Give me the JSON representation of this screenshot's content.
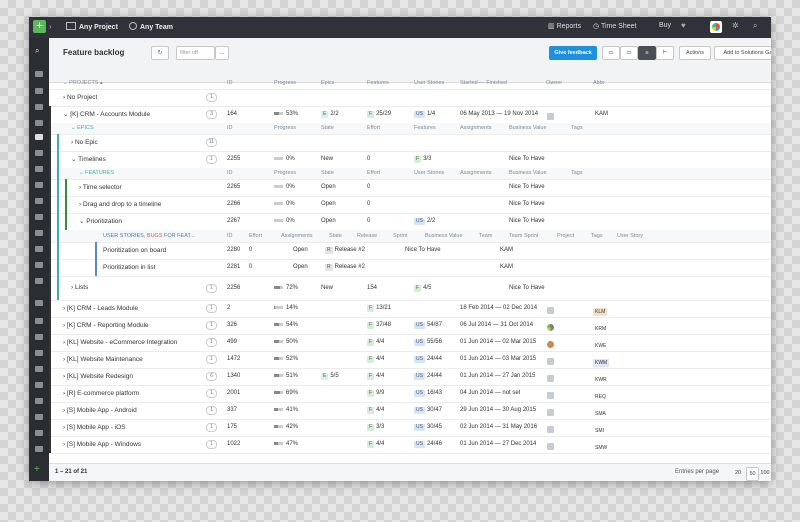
{
  "topbar": {
    "project": "Any Project",
    "team": "Any Team",
    "reports": "Reports",
    "timesheet": "Time Sheet",
    "buy": "Buy"
  },
  "toolbar": {
    "title": "Feature backlog",
    "filter_placeholder": "filter off",
    "more": "...",
    "feedback": "Give feedback",
    "actions": "Actions",
    "gallery": "Add to Solutions Gallery"
  },
  "header": {
    "projects": "PROJECTS",
    "id": "ID",
    "progress": "Progress",
    "epics": "Epics",
    "features": "Features",
    "stories": "User Stories",
    "started": "Started — Finished",
    "owner": "Owner",
    "abbr": "Abbr."
  },
  "epic_header": {
    "label": "EPICS",
    "id": "ID",
    "progress": "Progress",
    "state": "State",
    "effort": "Effort",
    "features": "Features",
    "assignments": "Assignments",
    "business": "Business Value",
    "tags": "Tags"
  },
  "feature_header": {
    "label": "FEATURES",
    "id": "ID",
    "progress": "Progress",
    "state": "State",
    "effort": "Effort",
    "stories": "User Stories",
    "assignments": "Assignments",
    "business": "Business Value",
    "tags": "Tags"
  },
  "story_header": {
    "label_a": "USER STORIES,",
    "label_b": "BUGS",
    "label_c": "FOR FEAT...",
    "id": "ID",
    "effort": "Effort",
    "assignments": "Assignments",
    "state": "State",
    "release": "Release",
    "sprint": "Sprint",
    "business": "Business Value",
    "team": "Team",
    "teamsprint": "Team Sprint",
    "project": "Project",
    "tags": "Tags",
    "userstory": "User Story"
  },
  "no_project": {
    "name": "No Project",
    "count": "1"
  },
  "crm_accounts": {
    "name": "[K] CRM - Accounts Module",
    "count": "3",
    "id": "164",
    "pct": "53%",
    "p": 0.53,
    "epics": "2/2",
    "features": "25/29",
    "stories": "1/4",
    "dates": "06 May 2013 — 19 Nov 2014",
    "abbr": "KAM"
  },
  "no_epic": {
    "name": "No Epic",
    "count": "11"
  },
  "timelines": {
    "name": "Timelines",
    "count": "1",
    "id": "2255",
    "pct": "0%",
    "p": 0,
    "state": "New",
    "effort": "0",
    "features": "3/3",
    "business": "Nice To Have"
  },
  "features": [
    {
      "name": "Time selector",
      "id": "2265",
      "pct": "0%",
      "p": 0,
      "state": "Open",
      "effort": "0",
      "stories": "",
      "business": "Nice To Have"
    },
    {
      "name": "Drag and drop to a timeline",
      "id": "2266",
      "pct": "0%",
      "p": 0,
      "state": "Open",
      "effort": "0",
      "stories": "",
      "business": "Nice To Have"
    },
    {
      "name": "Prioritization",
      "id": "2267",
      "pct": "0%",
      "p": 0,
      "state": "Open",
      "effort": "0",
      "stories": "2/2",
      "business": "Nice To Have"
    }
  ],
  "stories": [
    {
      "name": "Prioritization on board",
      "id": "2280",
      "effort": "0",
      "state": "Open",
      "release": "Release #2",
      "business": "Nice To Have",
      "team": "KAM"
    },
    {
      "name": "Prioritization in list",
      "id": "2281",
      "effort": "0",
      "state": "Open",
      "release": "Release #2",
      "business": "",
      "team": "KAM"
    }
  ],
  "lists": {
    "name": "Lists",
    "count": "1",
    "id": "2256",
    "pct": "72%",
    "p": 0.72,
    "state": "New",
    "effort": "154",
    "features": "4/5",
    "business": "Nice To Have"
  },
  "projects": [
    {
      "name": "[K] CRM - Leads Module",
      "count": "1",
      "id": "2",
      "pct": "14%",
      "p": 0.14,
      "epics": "",
      "features": "13/21",
      "stories": "",
      "dates": "18 Feb 2014 — 02 Dec 2014",
      "abbr": "KLM",
      "abg": "#f6e2c8"
    },
    {
      "name": "[K] CRM - Reporting Module",
      "count": "1",
      "id": "326",
      "pct": "54%",
      "p": 0.54,
      "epics": "",
      "features": "37/48",
      "stories": "54/87",
      "dates": "06 Jul 2014 — 31 Oct 2014",
      "abbr": "KRM",
      "abg": ""
    },
    {
      "name": "[KL] Website - eCommerce Integration",
      "count": "1",
      "id": "499",
      "pct": "50%",
      "p": 0.5,
      "epics": "",
      "features": "4/4",
      "stories": "55/56",
      "dates": "01 Jun 2014 — 02 Mar 2015",
      "abbr": "KWE",
      "abg": ""
    },
    {
      "name": "[KL] Website Maintenance",
      "count": "1",
      "id": "1472",
      "pct": "52%",
      "p": 0.52,
      "epics": "",
      "features": "4/4",
      "stories": "24/44",
      "dates": "01 Jun 2014 — 03 Mar 2015",
      "abbr": "KWM",
      "abg": "#dfe6f6"
    },
    {
      "name": "[KL] Website Redesign",
      "count": "6",
      "id": "1340",
      "pct": "51%",
      "p": 0.51,
      "epics": "5/5",
      "features": "4/4",
      "stories": "24/44",
      "dates": "01 Jun 2014 — 27 Jan 2015",
      "abbr": "KWR",
      "abg": ""
    },
    {
      "name": "[R] E-commerce platform",
      "count": "1",
      "id": "2001",
      "pct": "69%",
      "p": 0.69,
      "epics": "",
      "features": "9/9",
      "stories": "16/43",
      "dates": "04 Jun 2014 — not set",
      "abbr": "REQ",
      "abg": ""
    },
    {
      "name": "[S] Mobile App - Android",
      "count": "1",
      "id": "337",
      "pct": "41%",
      "p": 0.41,
      "epics": "",
      "features": "4/4",
      "stories": "30/47",
      "dates": "29 Jun 2014 — 30 Aug 2015",
      "abbr": "SMA",
      "abg": ""
    },
    {
      "name": "[S] Mobile App - iOS",
      "count": "1",
      "id": "175",
      "pct": "42%",
      "p": 0.42,
      "epics": "",
      "features": "3/3",
      "stories": "30/45",
      "dates": "02 Jun 2014 — 31 May 2016",
      "abbr": "SMI",
      "abg": ""
    },
    {
      "name": "[S] Mobile App - Windows",
      "count": "1",
      "id": "1022",
      "pct": "47%",
      "p": 0.47,
      "epics": "",
      "features": "4/4",
      "stories": "24/46",
      "dates": "01 Jun 2014 — 27 Dec 2014",
      "abbr": "SMW",
      "abg": ""
    }
  ],
  "footer": {
    "range": "1 – 21 of 21",
    "per_page": "Entries per page",
    "p20": "20",
    "p50": "50",
    "p100": "100"
  },
  "colors": {
    "accent": "#1e8fe1",
    "dark": "#2f3238",
    "green": "#5cb85c"
  }
}
